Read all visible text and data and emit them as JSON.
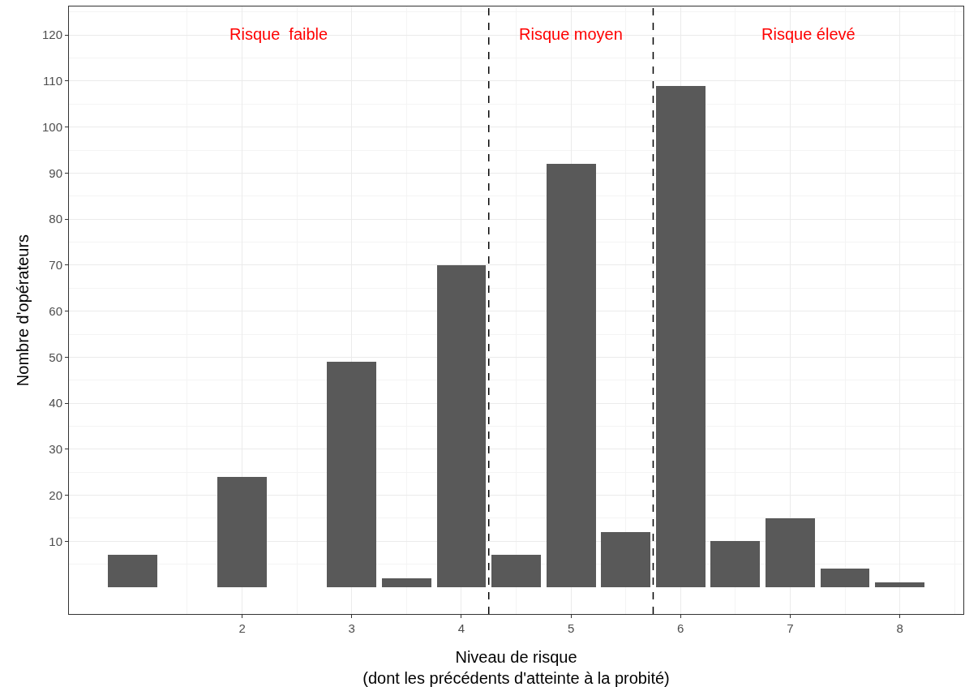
{
  "chart_data": {
    "type": "bar",
    "xlabel": "Niveau de risque\n(dont les précédents d'atteinte à la probité)",
    "ylabel": "Nombre d'opérateurs",
    "x": [
      1,
      2,
      3,
      3.5,
      4,
      4.5,
      5,
      5.5,
      6,
      6.5,
      7,
      7.5,
      8
    ],
    "values": [
      7,
      24,
      49,
      2,
      70,
      7,
      92,
      12,
      109,
      10,
      15,
      4,
      1
    ],
    "color": "#595959",
    "xlim": [
      0.42,
      8.58
    ],
    "xticks": [
      2,
      3,
      4,
      5,
      6,
      7,
      8
    ],
    "ylim": [
      -5.8,
      126.2
    ],
    "yticks": [
      10,
      20,
      30,
      40,
      50,
      60,
      70,
      80,
      90,
      100,
      110,
      120
    ],
    "grid": true,
    "ref_lines": [
      {
        "axis": "x",
        "value": 4.25,
        "color": "#000000",
        "line_style": "dashed"
      },
      {
        "axis": "x",
        "value": 5.75,
        "color": "#000000",
        "line_style": "dashed"
      }
    ],
    "annotations": [
      "Risque  faible",
      "Risque moyen",
      "Risque élevé"
    ]
  }
}
